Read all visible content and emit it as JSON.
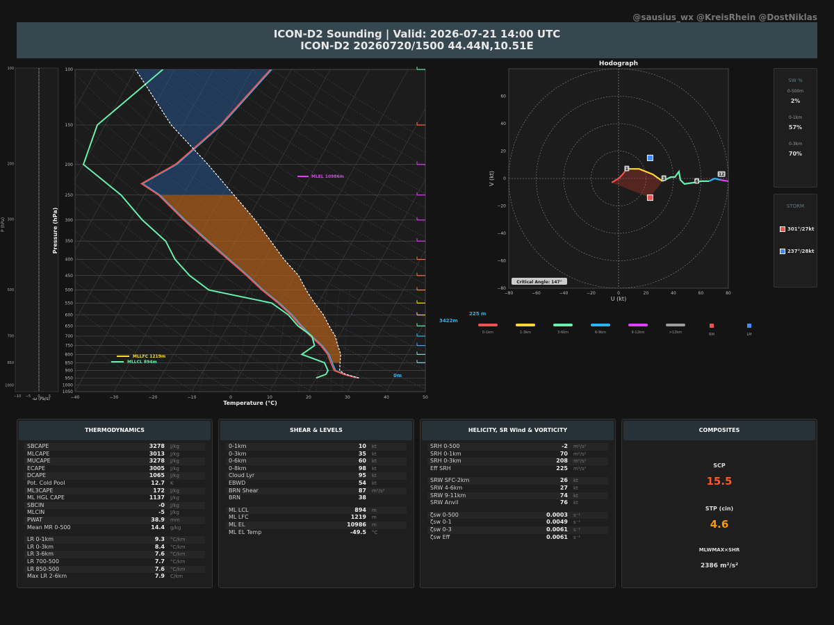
{
  "credit": "@sausius_wx @KreisRhein @DostNiklas",
  "title": {
    "line1": "ICON-D2 Sounding | Valid: 2026-07-21 14:00 UTC",
    "line2": "ICON-D2 20260720/1500 44.44N,10.51E"
  },
  "omega_panel": {
    "xlabel": "-ω (Pa/s)",
    "ylabel": "P (hPa)",
    "xticks": [
      "−10",
      "−5",
      "0",
      "5"
    ],
    "yticks": [
      "100",
      "200",
      "300",
      "500",
      "700",
      "850",
      "1000"
    ]
  },
  "skewt": {
    "xlabel": "Temperature (°C)",
    "ylabel": "Pressure (hPa)",
    "xticks": [
      "−40",
      "−30",
      "−20",
      "−10",
      "0",
      "10",
      "20",
      "30",
      "40",
      "50"
    ],
    "yticks": [
      "100",
      "150",
      "200",
      "250",
      "300",
      "350",
      "400",
      "450",
      "500",
      "550",
      "600",
      "650",
      "700",
      "750",
      "800",
      "850",
      "900",
      "950",
      "1000",
      "1050"
    ],
    "annotations": {
      "mlel": "MLEL 10986m",
      "mllfc": "MLLFC 1219m",
      "mllcl": "MLLCL 894m",
      "srh_top": "3422m",
      "srh_val": "225 m2s2",
      "sfc": "0m"
    }
  },
  "hodograph": {
    "title": "Hodograph",
    "xlabel": "U (kt)",
    "ylabel": "V (kt)",
    "xticks": [
      "−80",
      "−60",
      "−40",
      "−20",
      "0",
      "20",
      "40",
      "60",
      "80"
    ],
    "yticks": [
      "60",
      "40",
      "20",
      "0",
      "−20",
      "−40",
      "−60",
      "−80"
    ],
    "height_labels": [
      "1",
      "3",
      "6",
      "12"
    ],
    "critical_angle": "Critical Angle: 147°"
  },
  "hodo_legend": [
    {
      "label": "0-1km",
      "color": "#ef5350"
    },
    {
      "label": "1-3km",
      "color": "#fdd835"
    },
    {
      "label": "3-6km",
      "color": "#69f0ae"
    },
    {
      "label": "6-9km",
      "color": "#29b6f6"
    },
    {
      "label": "9-12km",
      "color": "#e040fb"
    },
    {
      "label": ">12km",
      "color": "#9e9e9e"
    },
    {
      "label": "RM",
      "color": "#ef5350"
    },
    {
      "label": "LM",
      "color": "#448aff"
    }
  ],
  "sr_box": {
    "title": "SW %",
    "items": [
      {
        "label": "0-500m",
        "value": "2%"
      },
      {
        "label": "0-1km",
        "value": "57%"
      },
      {
        "label": "0-3km",
        "value": "70%"
      }
    ]
  },
  "storm_box": {
    "title": "STORM",
    "rm": "301°/27kt",
    "lm": "237°/28kt"
  },
  "thermo": {
    "title": "THERMODYNAMICS",
    "groups": [
      [
        [
          "SBCAPE",
          "3278",
          "J/kg"
        ],
        [
          "MLCAPE",
          "3013",
          "J/kg"
        ],
        [
          "MUCAPE",
          "3278",
          "J/kg"
        ],
        [
          "ECAPE",
          "3005",
          "J/kg"
        ],
        [
          "DCAPE",
          "1065",
          "J/kg"
        ],
        [
          "Pot. Cold Pool",
          "12.7",
          "K"
        ],
        [
          "ML3CAPE",
          "172",
          "J/kg"
        ],
        [
          "ML HGL CAPE",
          "1137",
          "J/kg"
        ],
        [
          "SBCIN",
          "-0",
          "J/kg"
        ],
        [
          "MLCIN",
          "-5",
          "J/kg"
        ],
        [
          "PWAT",
          "38.9",
          "mm"
        ],
        [
          "Mean MR 0-500",
          "14.4",
          "g/kg"
        ]
      ],
      [
        [
          "LR 0-1km",
          "9.3",
          "°C/km"
        ],
        [
          "LR 0-3km",
          "8.4",
          "°C/km"
        ],
        [
          "LR 3-6km",
          "7.6",
          "°C/km"
        ],
        [
          "LR 700-500",
          "7.7",
          "°C/km"
        ],
        [
          "LR 850-500",
          "7.6",
          "°C/km"
        ],
        [
          "Max LR 2-6km",
          "7.9",
          "C/km"
        ]
      ]
    ]
  },
  "shear": {
    "title": "SHEAR & LEVELS",
    "groups": [
      [
        [
          "0-1km",
          "10",
          "kt"
        ],
        [
          "0-3km",
          "35",
          "kt"
        ],
        [
          "0-6km",
          "60",
          "kt"
        ],
        [
          "0-8km",
          "98",
          "kt"
        ],
        [
          "Cloud Lyr",
          "95",
          "kt"
        ],
        [
          "EBWD",
          "54",
          "kt"
        ],
        [
          "BRN Shear",
          "87",
          "m²/s²"
        ],
        [
          "BRN",
          "38",
          ""
        ]
      ],
      [
        [
          "ML LCL",
          "894",
          "m"
        ],
        [
          "ML LFC",
          "1219",
          "m"
        ],
        [
          "ML EL",
          "10986",
          "m"
        ],
        [
          "ML EL Temp",
          "-49.5",
          "°C"
        ]
      ]
    ]
  },
  "helicity": {
    "title": "HELICITY, SR Wind & VORTICITY",
    "groups": [
      [
        [
          "SRH 0-500",
          "-2",
          "m²/s²"
        ],
        [
          "SRH 0-1km",
          "70",
          "m²/s²"
        ],
        [
          "SRH 0-3km",
          "208",
          "m²/s²"
        ],
        [
          "Eff SRH",
          "225",
          "m²/s²"
        ]
      ],
      [
        [
          "SRW SFC-2km",
          "26",
          "kt"
        ],
        [
          "SRW 4-6km",
          "27",
          "kt"
        ],
        [
          "SRW 9-11km",
          "74",
          "kt"
        ],
        [
          "SRW Anvil",
          "76",
          "kt"
        ]
      ],
      [
        [
          "ζsw 0-500",
          "0.0003",
          "s⁻¹"
        ],
        [
          "ζsw 0-1",
          "0.0049",
          "s⁻¹"
        ],
        [
          "ζsw 0-3",
          "0.0061",
          "s⁻¹"
        ],
        [
          "ζsw Eff",
          "0.0061",
          "s⁻¹"
        ]
      ]
    ]
  },
  "composites": {
    "title": "COMPOSITES",
    "scp_label": "SCP",
    "scp": "15.5",
    "stp_label": "STP (cin)",
    "stp": "4.6",
    "mlw_label": "MLWMAX×SHR",
    "mlw": "2386 m²/s²"
  },
  "chart_data": [
    {
      "type": "line",
      "title": "",
      "xlabel": "Temperature (°C)",
      "ylabel": "Pressure (hPa)",
      "xlim": [
        -40,
        50
      ],
      "ylim": [
        1050,
        100
      ],
      "yscale": "log",
      "skew": true,
      "series": [
        {
          "name": "",
          "color": "#ef5350",
          "p": [
            950,
            925,
            900,
            850,
            800,
            750,
            700,
            650,
            600,
            550,
            500,
            450,
            400,
            350,
            300,
            250,
            230,
            200,
            150,
            100
          ],
          "t": [
            31,
            27,
            24,
            22,
            20,
            17,
            13,
            9,
            5,
            0,
            -6,
            -12,
            -19,
            -27,
            -36,
            -46,
            -52,
            -46,
            -40,
            -35
          ]
        },
        {
          "name": "",
          "color": "#69f0ae",
          "p": [
            950,
            925,
            900,
            850,
            800,
            750,
            700,
            650,
            600,
            550,
            500,
            450,
            400,
            350,
            300,
            250,
            200,
            150,
            100
          ],
          "t": [
            20,
            22,
            22,
            20,
            13,
            15,
            13,
            8,
            4,
            -2,
            -20,
            -27,
            -33,
            -38,
            -47,
            -56,
            -70,
            -72,
            -63
          ]
        },
        {
          "name": "",
          "color": "#ffffff",
          "p": [
            950,
            925,
            900,
            850,
            800,
            750,
            700,
            650,
            600,
            550,
            500,
            450,
            400,
            350,
            300,
            250,
            200,
            150,
            100
          ],
          "t": [
            31,
            27,
            25,
            24,
            23,
            21,
            19,
            16,
            13,
            9,
            5,
            1,
            -5,
            -11,
            -18,
            -27,
            -38,
            -53,
            -70
          ]
        }
      ]
    },
    {
      "type": "line",
      "title": "Hodograph",
      "xlabel": "U (kt)",
      "ylabel": "V (kt)",
      "xlim": [
        -80,
        80
      ],
      "ylim": [
        -80,
        80
      ],
      "series": [
        {
          "name": "0-1km",
          "color": "#ef5350",
          "u": [
            -5,
            0,
            3,
            6
          ],
          "v": [
            -3,
            0,
            3,
            7
          ]
        },
        {
          "name": "1-3km",
          "color": "#fdd835",
          "u": [
            6,
            15,
            25,
            32
          ],
          "v": [
            7,
            7,
            3,
            -2
          ]
        },
        {
          "name": "3-6km",
          "color": "#69f0ae",
          "u": [
            32,
            38,
            41,
            44,
            45,
            48,
            55,
            60,
            66
          ],
          "v": [
            -2,
            1,
            1,
            5,
            -1,
            -4,
            -3,
            -2,
            -2
          ]
        },
        {
          "name": "6-9km",
          "color": "#29b6f6",
          "u": [
            66,
            70,
            74
          ],
          "v": [
            -2,
            0,
            -1
          ]
        },
        {
          "name": "9-12km",
          "color": "#e040fb",
          "u": [
            74,
            80
          ],
          "v": [
            -1,
            -2
          ]
        }
      ],
      "storm_motion": {
        "rm": {
          "u": 23,
          "v": -14
        },
        "lm": {
          "u": 23,
          "v": 15
        }
      }
    }
  ]
}
